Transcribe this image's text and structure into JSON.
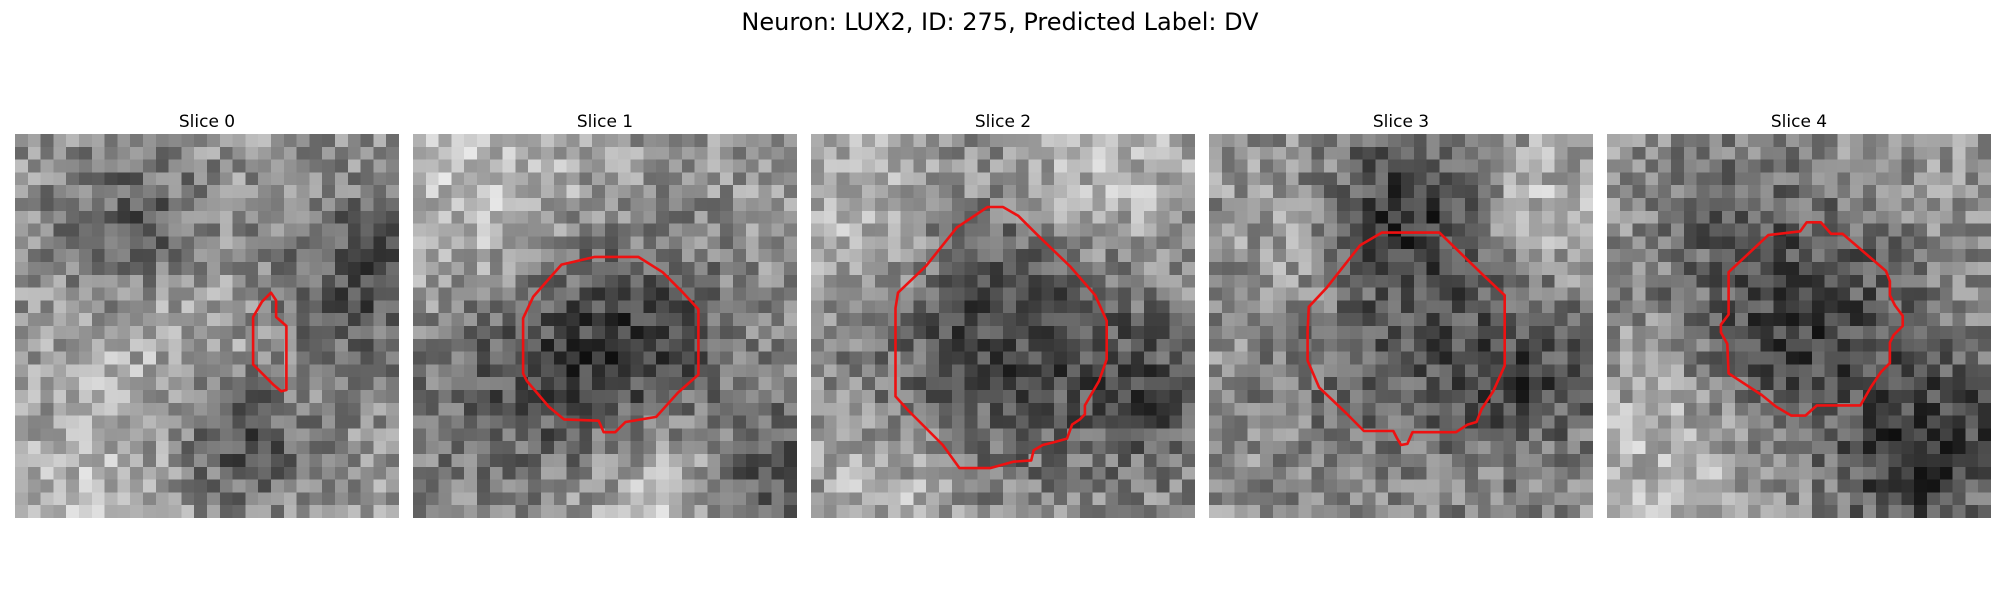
{
  "figure": {
    "title": "Neuron: LUX2, ID: 275, Predicted Label: DV",
    "grid_size": 30,
    "outline_color": "#ee1111"
  },
  "panels": [
    {
      "title": "Slice 0",
      "mean": 150,
      "spread": 95,
      "blobs": [
        {
          "cx": 9,
          "cy": 7,
          "r": 4.5,
          "amp": -70
        },
        {
          "cx": 26,
          "cy": 11,
          "r": 5,
          "amp": -75
        },
        {
          "cx": 17,
          "cy": 23,
          "r": 4,
          "amp": -80
        },
        {
          "cx": 13,
          "cy": 15,
          "r": 7,
          "amp": 35
        },
        {
          "cx": 6,
          "cy": 28,
          "r": 5,
          "amp": 30
        }
      ],
      "contour": [
        [
          19.3,
          13.1
        ],
        [
          20.0,
          12.4
        ],
        [
          20.4,
          13.0
        ],
        [
          20.4,
          14.3
        ],
        [
          21.2,
          15.0
        ],
        [
          21.2,
          20.0
        ],
        [
          20.8,
          20.1
        ],
        [
          20.2,
          19.6
        ],
        [
          18.6,
          18.0
        ],
        [
          18.6,
          14.3
        ]
      ]
    },
    {
      "title": "Slice 1",
      "mean": 150,
      "spread": 95,
      "blobs": [
        {
          "cx": 16,
          "cy": 16,
          "r": 6,
          "amp": -90
        },
        {
          "cx": 5,
          "cy": 20,
          "r": 6,
          "amp": -45
        },
        {
          "cx": 28,
          "cy": 26,
          "r": 4,
          "amp": -70
        },
        {
          "cx": 19,
          "cy": 27,
          "r": 4,
          "amp": 55
        },
        {
          "cx": 5,
          "cy": 4,
          "r": 6,
          "amp": 45
        }
      ],
      "contour": [
        [
          9.4,
          12.7
        ],
        [
          11.6,
          10.2
        ],
        [
          14.2,
          9.6
        ],
        [
          17.6,
          9.6
        ],
        [
          19.5,
          10.8
        ],
        [
          21.0,
          12.3
        ],
        [
          22.3,
          13.7
        ],
        [
          22.3,
          18.8
        ],
        [
          20.7,
          20.2
        ],
        [
          19.0,
          22.1
        ],
        [
          16.6,
          22.5
        ],
        [
          15.8,
          23.3
        ],
        [
          14.9,
          23.3
        ],
        [
          14.5,
          22.4
        ],
        [
          11.8,
          22.3
        ],
        [
          10.6,
          21.3
        ],
        [
          8.9,
          19.3
        ],
        [
          8.6,
          18.7
        ],
        [
          8.6,
          14.4
        ]
      ]
    },
    {
      "title": "Slice 2",
      "mean": 150,
      "spread": 95,
      "blobs": [
        {
          "cx": 15,
          "cy": 15,
          "r": 8,
          "amp": -85
        },
        {
          "cx": 27,
          "cy": 20,
          "r": 4,
          "amp": -55
        },
        {
          "cx": 4,
          "cy": 6,
          "r": 5,
          "amp": 45
        },
        {
          "cx": 22,
          "cy": 4,
          "r": 5,
          "amp": 50
        },
        {
          "cx": 6,
          "cy": 27,
          "r": 4,
          "amp": 40
        }
      ],
      "contour": [
        [
          6.8,
          12.4
        ],
        [
          9.0,
          10.3
        ],
        [
          11.4,
          7.3
        ],
        [
          13.8,
          5.7
        ],
        [
          15.0,
          5.7
        ],
        [
          16.2,
          6.4
        ],
        [
          17.6,
          7.8
        ],
        [
          20.3,
          10.4
        ],
        [
          22.2,
          12.6
        ],
        [
          23.1,
          14.6
        ],
        [
          23.1,
          17.6
        ],
        [
          22.5,
          19.3
        ],
        [
          21.4,
          21.2
        ],
        [
          21.4,
          21.9
        ],
        [
          21.0,
          22.3
        ],
        [
          20.4,
          22.7
        ],
        [
          20.0,
          23.8
        ],
        [
          18.9,
          24.1
        ],
        [
          18.1,
          24.3
        ],
        [
          17.4,
          24.7
        ],
        [
          17.2,
          25.5
        ],
        [
          15.8,
          25.6
        ],
        [
          14.0,
          26.1
        ],
        [
          11.6,
          26.1
        ],
        [
          10.3,
          24.3
        ],
        [
          7.6,
          21.6
        ],
        [
          6.6,
          20.5
        ],
        [
          6.6,
          13.6
        ]
      ]
    },
    {
      "title": "Slice 3",
      "mean": 145,
      "spread": 95,
      "blobs": [
        {
          "cx": 15,
          "cy": 15,
          "r": 7.5,
          "amp": -60
        },
        {
          "cx": 15,
          "cy": 5,
          "r": 4,
          "amp": -75
        },
        {
          "cx": 25,
          "cy": 19,
          "r": 4,
          "amp": -55
        },
        {
          "cx": 7,
          "cy": 9,
          "r": 4,
          "amp": 35
        },
        {
          "cx": 25,
          "cy": 5,
          "r": 4,
          "amp": 45
        }
      ],
      "contour": [
        [
          7.8,
          13.5
        ],
        [
          9.2,
          12.0
        ],
        [
          11.8,
          8.7
        ],
        [
          13.5,
          7.7
        ],
        [
          18.0,
          7.7
        ],
        [
          21.4,
          11.0
        ],
        [
          23.1,
          12.6
        ],
        [
          23.1,
          18.1
        ],
        [
          22.2,
          20.1
        ],
        [
          21.3,
          21.5
        ],
        [
          20.9,
          22.5
        ],
        [
          20.2,
          22.7
        ],
        [
          19.3,
          23.3
        ],
        [
          15.9,
          23.3
        ],
        [
          15.5,
          24.2
        ],
        [
          15.0,
          24.3
        ],
        [
          14.7,
          23.8
        ],
        [
          14.4,
          23.2
        ],
        [
          12.1,
          23.2
        ],
        [
          10.7,
          21.8
        ],
        [
          8.6,
          19.8
        ],
        [
          7.7,
          17.7
        ],
        [
          7.7,
          15.4
        ]
      ]
    },
    {
      "title": "Slice 4",
      "mean": 150,
      "spread": 95,
      "blobs": [
        {
          "cx": 15,
          "cy": 15,
          "r": 7,
          "amp": -85
        },
        {
          "cx": 27,
          "cy": 23,
          "r": 4.5,
          "amp": -75
        },
        {
          "cx": 22,
          "cy": 27,
          "r": 3,
          "amp": -55
        },
        {
          "cx": 9,
          "cy": 5,
          "r": 5,
          "amp": -30
        },
        {
          "cx": 5,
          "cy": 24,
          "r": 5,
          "amp": 45
        }
      ],
      "contour": [
        [
          9.5,
          10.8
        ],
        [
          12.6,
          7.9
        ],
        [
          15.1,
          7.6
        ],
        [
          15.6,
          6.9
        ],
        [
          16.7,
          6.9
        ],
        [
          17.5,
          7.8
        ],
        [
          18.4,
          7.8
        ],
        [
          21.8,
          10.7
        ],
        [
          22.1,
          11.5
        ],
        [
          22.1,
          12.6
        ],
        [
          22.5,
          13.4
        ],
        [
          23.1,
          14.2
        ],
        [
          23.1,
          15.0
        ],
        [
          22.4,
          15.7
        ],
        [
          22.1,
          16.3
        ],
        [
          22.1,
          17.9
        ],
        [
          21.4,
          18.6
        ],
        [
          20.6,
          19.8
        ],
        [
          19.8,
          21.2
        ],
        [
          16.4,
          21.2
        ],
        [
          15.5,
          22.0
        ],
        [
          14.4,
          22.0
        ],
        [
          13.2,
          21.3
        ],
        [
          12.1,
          20.4
        ],
        [
          9.5,
          18.7
        ],
        [
          9.4,
          16.4
        ],
        [
          8.9,
          15.5
        ],
        [
          8.9,
          14.9
        ],
        [
          9.5,
          14.1
        ]
      ]
    }
  ]
}
